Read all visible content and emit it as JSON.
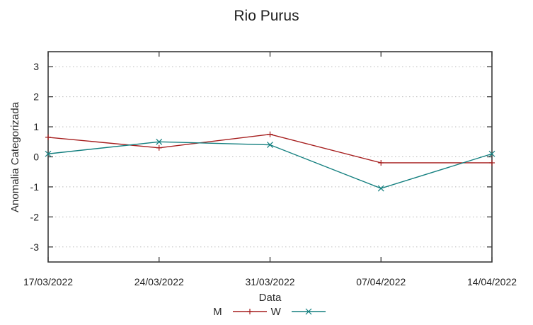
{
  "chart_data": {
    "type": "line",
    "title": "Rio Purus",
    "xlabel": "Data",
    "ylabel": "Anomalia Categorizada",
    "categories": [
      "17/03/2022",
      "24/03/2022",
      "31/03/2022",
      "07/04/2022",
      "14/04/2022"
    ],
    "series": [
      {
        "name": "M",
        "color": "#a61e1e",
        "marker": "plus",
        "values": [
          0.65,
          0.3,
          0.75,
          -0.2,
          -0.2
        ]
      },
      {
        "name": "W",
        "color": "#137f7f",
        "marker": "cross",
        "values": [
          0.1,
          0.5,
          0.4,
          -1.05,
          0.1
        ]
      }
    ],
    "ylim": [
      -3.5,
      3.5
    ],
    "yticks": [
      3,
      2,
      1,
      0,
      -1,
      -2,
      -3
    ],
    "grid": "horizontal-dotted",
    "ticks_mirrored_inward": true,
    "legend_position": "below-x-label"
  },
  "colors": {
    "frame": "#3a3a3a",
    "grid": "#b9b9b9",
    "text": "#1f1f1f",
    "background": "#ffffff"
  }
}
